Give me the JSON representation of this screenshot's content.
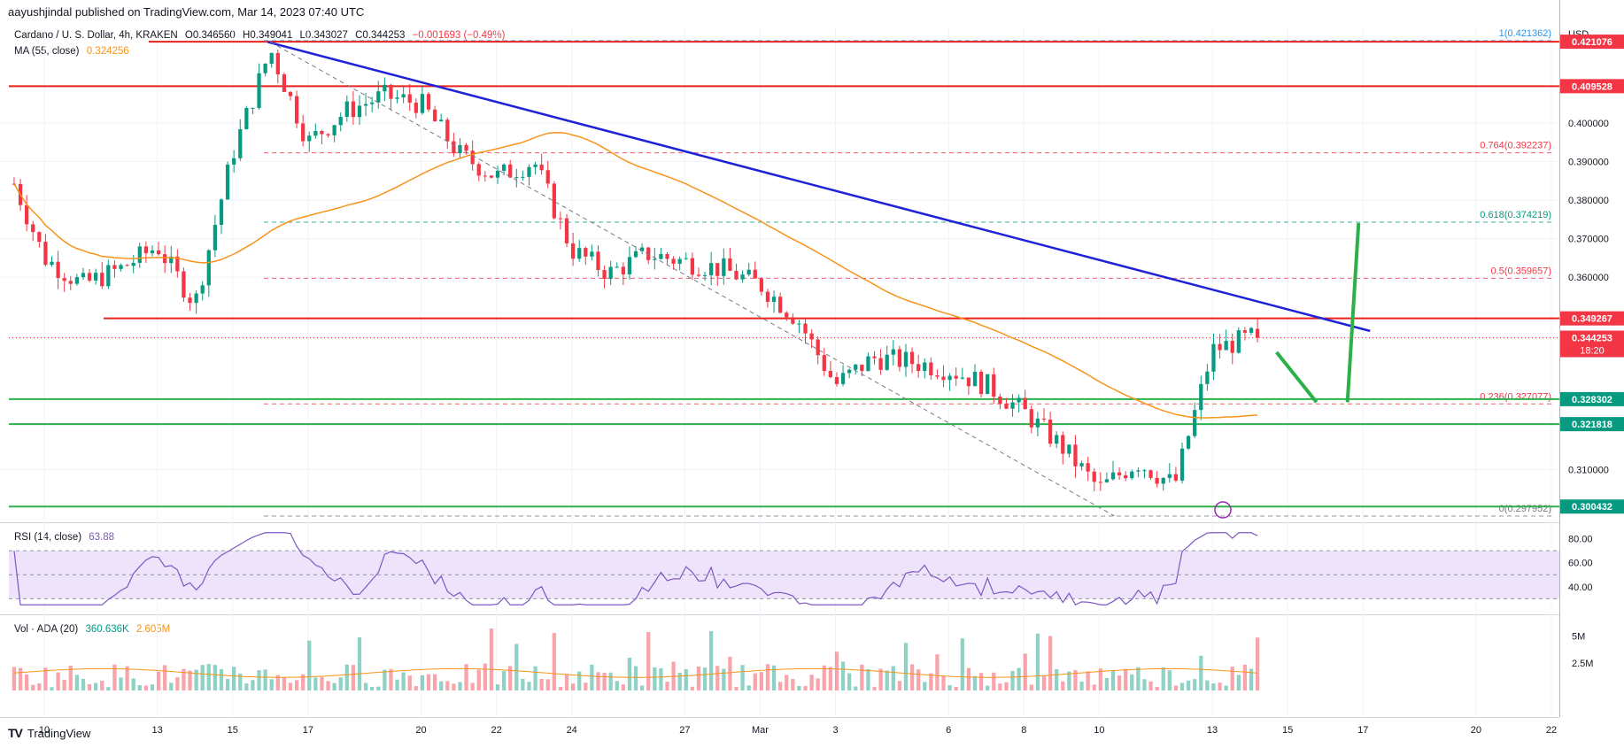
{
  "header": {
    "published": "aayushjindal published on TradingView.com, Mar 14, 2023 07:40 UTC"
  },
  "legend": {
    "symbol": "Cardano / U. S. Dollar, 4h, KRAKEN",
    "open": "O0.346560",
    "high": "H0.349041",
    "low": "L0.343027",
    "close": "C0.344253",
    "change": "−0.001693 (−0.49%)",
    "ma_label": "MA (55, close)",
    "ma_value": "0.324256",
    "rsi_label": "RSI (14, close)",
    "rsi_value": "63.88",
    "vol_label": "Vol · ADA (20)",
    "vol_value1": "360.636K",
    "vol_value2": "2.605M"
  },
  "axis": {
    "currency": "USD",
    "price_ticks": [
      "0.400000",
      "0.390000",
      "0.380000",
      "0.370000",
      "0.360000",
      "0.310000"
    ],
    "price_tick_values": [
      0.4,
      0.39,
      0.38,
      0.37,
      0.36,
      0.31
    ],
    "rsi_ticks": [
      "80.00",
      "60.00",
      "40.00"
    ],
    "rsi_tick_values": [
      80,
      60,
      40
    ],
    "vol_ticks": [
      "5M",
      "2.5M"
    ],
    "vol_tick_values": [
      5,
      2.5
    ],
    "x_labels": [
      "10",
      "13",
      "15",
      "17",
      "20",
      "22",
      "24",
      "27",
      "Mar",
      "3",
      "6",
      "8",
      "10",
      "13",
      "15",
      "17",
      "20",
      "22"
    ]
  },
  "price_tags": [
    {
      "label": "0.421076",
      "value": 0.421076,
      "color": "#f23645"
    },
    {
      "label": "0.409528",
      "value": 0.409528,
      "color": "#f23645"
    },
    {
      "label": "0.349267",
      "value": 0.349267,
      "color": "#f23645"
    },
    {
      "label": "0.344253",
      "value": 0.344253,
      "color": "#f23645",
      "sub": "18:20"
    },
    {
      "label": "0.328302",
      "value": 0.328302,
      "color": "#089981"
    },
    {
      "label": "0.321818",
      "value": 0.321818,
      "color": "#089981"
    },
    {
      "label": "0.300432",
      "value": 0.300432,
      "color": "#089981"
    }
  ],
  "fib_levels": [
    {
      "label": "1(0.421362)",
      "value": 0.421362,
      "color": "#2196f3"
    },
    {
      "label": "0.764(0.392237)",
      "value": 0.392237,
      "color": "#f23645"
    },
    {
      "label": "0.618(0.374219)",
      "value": 0.374219,
      "color": "#089981"
    },
    {
      "label": "0.5(0.359657)",
      "value": 0.359657,
      "color": "#f23645"
    },
    {
      "label": "0.236(0.327077)",
      "value": 0.327077,
      "color": "#f23645"
    },
    {
      "label": "0(0.297952)",
      "value": 0.297952,
      "color": "#787b86"
    }
  ],
  "colors": {
    "up": "#089981",
    "down": "#f23645",
    "ma": "#f7931a",
    "trend": "#1e22d6",
    "rsi": "#7e57c2",
    "rsi_band": "#ede3fb",
    "support": "#2bb04a",
    "resistance": "#e8221b"
  },
  "chart_data": {
    "type": "candlestick",
    "symbol": "ADA/USD",
    "timeframe": "4h",
    "x_range": [
      "Feb 9, 2023",
      "Mar 23, 2023"
    ],
    "ylim": [
      0.2975,
      0.425
    ],
    "close_path": [
      {
        "t": "Feb 9",
        "v": 0.389
      },
      {
        "t": "Feb 10",
        "v": 0.365
      },
      {
        "t": "Feb 11",
        "v": 0.358
      },
      {
        "t": "Feb 12",
        "v": 0.362
      },
      {
        "t": "Feb 13",
        "v": 0.368
      },
      {
        "t": "Feb 14",
        "v": 0.353
      },
      {
        "t": "Feb 15",
        "v": 0.392
      },
      {
        "t": "Feb 16",
        "v": 0.419
      },
      {
        "t": "Feb 17",
        "v": 0.395
      },
      {
        "t": "Feb 18",
        "v": 0.403
      },
      {
        "t": "Feb 19",
        "v": 0.407
      },
      {
        "t": "Feb 20",
        "v": 0.405
      },
      {
        "t": "Feb 21",
        "v": 0.392
      },
      {
        "t": "Feb 22",
        "v": 0.386
      },
      {
        "t": "Feb 23",
        "v": 0.39
      },
      {
        "t": "Feb 24",
        "v": 0.367
      },
      {
        "t": "Feb 25",
        "v": 0.361
      },
      {
        "t": "Feb 26",
        "v": 0.366
      },
      {
        "t": "Feb 27",
        "v": 0.364
      },
      {
        "t": "Feb 28",
        "v": 0.362
      },
      {
        "t": "Mar 1",
        "v": 0.358
      },
      {
        "t": "Mar 2",
        "v": 0.349
      },
      {
        "t": "Mar 3",
        "v": 0.332
      },
      {
        "t": "Mar 4",
        "v": 0.339
      },
      {
        "t": "Mar 5",
        "v": 0.338
      },
      {
        "t": "Mar 6",
        "v": 0.336
      },
      {
        "t": "Mar 7",
        "v": 0.332
      },
      {
        "t": "Mar 8",
        "v": 0.325
      },
      {
        "t": "Mar 9",
        "v": 0.316
      },
      {
        "t": "Mar 10",
        "v": 0.305
      },
      {
        "t": "Mar 11",
        "v": 0.312
      },
      {
        "t": "Mar 12",
        "v": 0.306
      },
      {
        "t": "Mar 13",
        "v": 0.341
      },
      {
        "t": "Mar 14",
        "v": 0.344253
      }
    ],
    "series": [
      {
        "name": "MA (55, close)",
        "values_end": 0.324256
      },
      {
        "name": "RSI (14, close)",
        "values_end": 63.88
      }
    ],
    "rsi_band": [
      30,
      70
    ],
    "lines": [
      {
        "type": "trendline",
        "from": {
          "t": "Feb 16",
          "v": 0.421
        },
        "to": {
          "t": "Mar 17",
          "v": 0.346
        }
      },
      {
        "type": "resistance",
        "value": 0.421076
      },
      {
        "type": "resistance",
        "value": 0.409528
      },
      {
        "type": "resistance",
        "value": 0.349267
      },
      {
        "type": "support",
        "value": 0.328302
      },
      {
        "type": "support",
        "value": 0.321818
      },
      {
        "type": "support",
        "value": 0.300432
      }
    ],
    "projection": [
      {
        "t": "Mar 14",
        "v": 0.3405
      },
      {
        "t": "Mar 16",
        "v": 0.3275
      },
      {
        "t": "Mar 16",
        "v": 0.3275
      },
      {
        "t": "Mar 17",
        "v": 0.374
      }
    ],
    "grid": true
  }
}
